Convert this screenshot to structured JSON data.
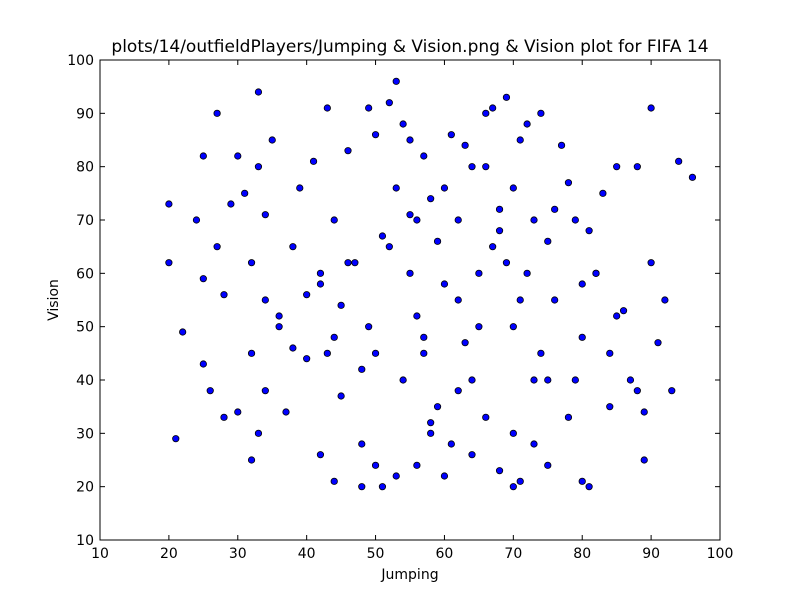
{
  "chart_data": {
    "type": "scatter",
    "title": "plots/14/outfieldPlayers/Jumping & Vision.png & Vision plot for FIFA 14",
    "xlabel": "Jumping",
    "ylabel": "Vision",
    "xlim": [
      10,
      100
    ],
    "ylim": [
      10,
      100
    ],
    "xticks": [
      "10",
      "20",
      "30",
      "40",
      "50",
      "60",
      "70",
      "80",
      "90",
      "100"
    ],
    "yticks": [
      "10",
      "20",
      "30",
      "40",
      "50",
      "60",
      "70",
      "80",
      "90",
      "100"
    ],
    "grid": false,
    "marker_color": "#0000ff",
    "marker_edge": "#000000",
    "x": [
      20,
      20,
      21,
      22,
      24,
      25,
      25,
      25,
      26,
      27,
      27,
      28,
      28,
      29,
      30,
      30,
      31,
      32,
      32,
      32,
      33,
      33,
      33,
      34,
      34,
      35,
      36,
      37,
      38,
      39,
      40,
      41,
      42,
      42,
      43,
      43,
      44,
      44,
      45,
      45,
      46,
      47,
      48,
      48,
      49,
      49,
      50,
      50,
      51,
      51,
      52,
      53,
      53,
      53,
      54,
      54,
      55,
      55,
      56,
      56,
      57,
      57,
      58,
      58,
      59,
      60,
      60,
      61,
      62,
      62,
      63,
      64,
      64,
      65,
      66,
      66,
      67,
      68,
      68,
      69,
      70,
      70,
      70,
      71,
      71,
      72,
      73,
      73,
      74,
      75,
      75,
      76,
      77,
      78,
      78,
      79,
      80,
      80,
      81,
      81,
      82,
      83,
      84,
      85,
      86,
      87,
      88,
      89,
      89,
      90,
      90,
      91,
      92,
      93,
      94,
      96,
      67,
      68,
      70,
      72,
      74,
      55,
      58,
      60,
      62,
      64,
      50,
      52,
      56,
      59,
      63,
      65,
      69,
      73,
      76,
      79,
      82,
      85,
      88,
      57,
      61,
      66,
      71,
      75,
      80,
      84,
      48,
      46,
      44,
      40,
      36,
      34,
      38,
      42
    ],
    "y": [
      73,
      62,
      29,
      49,
      70,
      82,
      43,
      59,
      38,
      65,
      90,
      56,
      33,
      73,
      34,
      82,
      75,
      62,
      25,
      45,
      94,
      80,
      30,
      55,
      71,
      85,
      50,
      34,
      65,
      76,
      44,
      81,
      26,
      60,
      91,
      45,
      21,
      70,
      54,
      37,
      83,
      62,
      28,
      20,
      91,
      50,
      86,
      24,
      67,
      20,
      92,
      96,
      76,
      22,
      88,
      40,
      71,
      85,
      24,
      52,
      45,
      82,
      30,
      74,
      66,
      22,
      58,
      86,
      38,
      70,
      47,
      26,
      80,
      60,
      33,
      90,
      91,
      23,
      68,
      93,
      50,
      20,
      76,
      85,
      21,
      88,
      40,
      70,
      90,
      24,
      66,
      55,
      84,
      77,
      33,
      70,
      48,
      21,
      20,
      68,
      60,
      75,
      45,
      80,
      53,
      40,
      80,
      34,
      25,
      91,
      62,
      47,
      55,
      38,
      81,
      78,
      65,
      72,
      30,
      60,
      45,
      60,
      32,
      76,
      55,
      40,
      45,
      65,
      70,
      35,
      84,
      50,
      62,
      28,
      72,
      40,
      60,
      52,
      38,
      48,
      28,
      80,
      55,
      40,
      58,
      35,
      42,
      62,
      48,
      56,
      52,
      38,
      46,
      58
    ]
  }
}
